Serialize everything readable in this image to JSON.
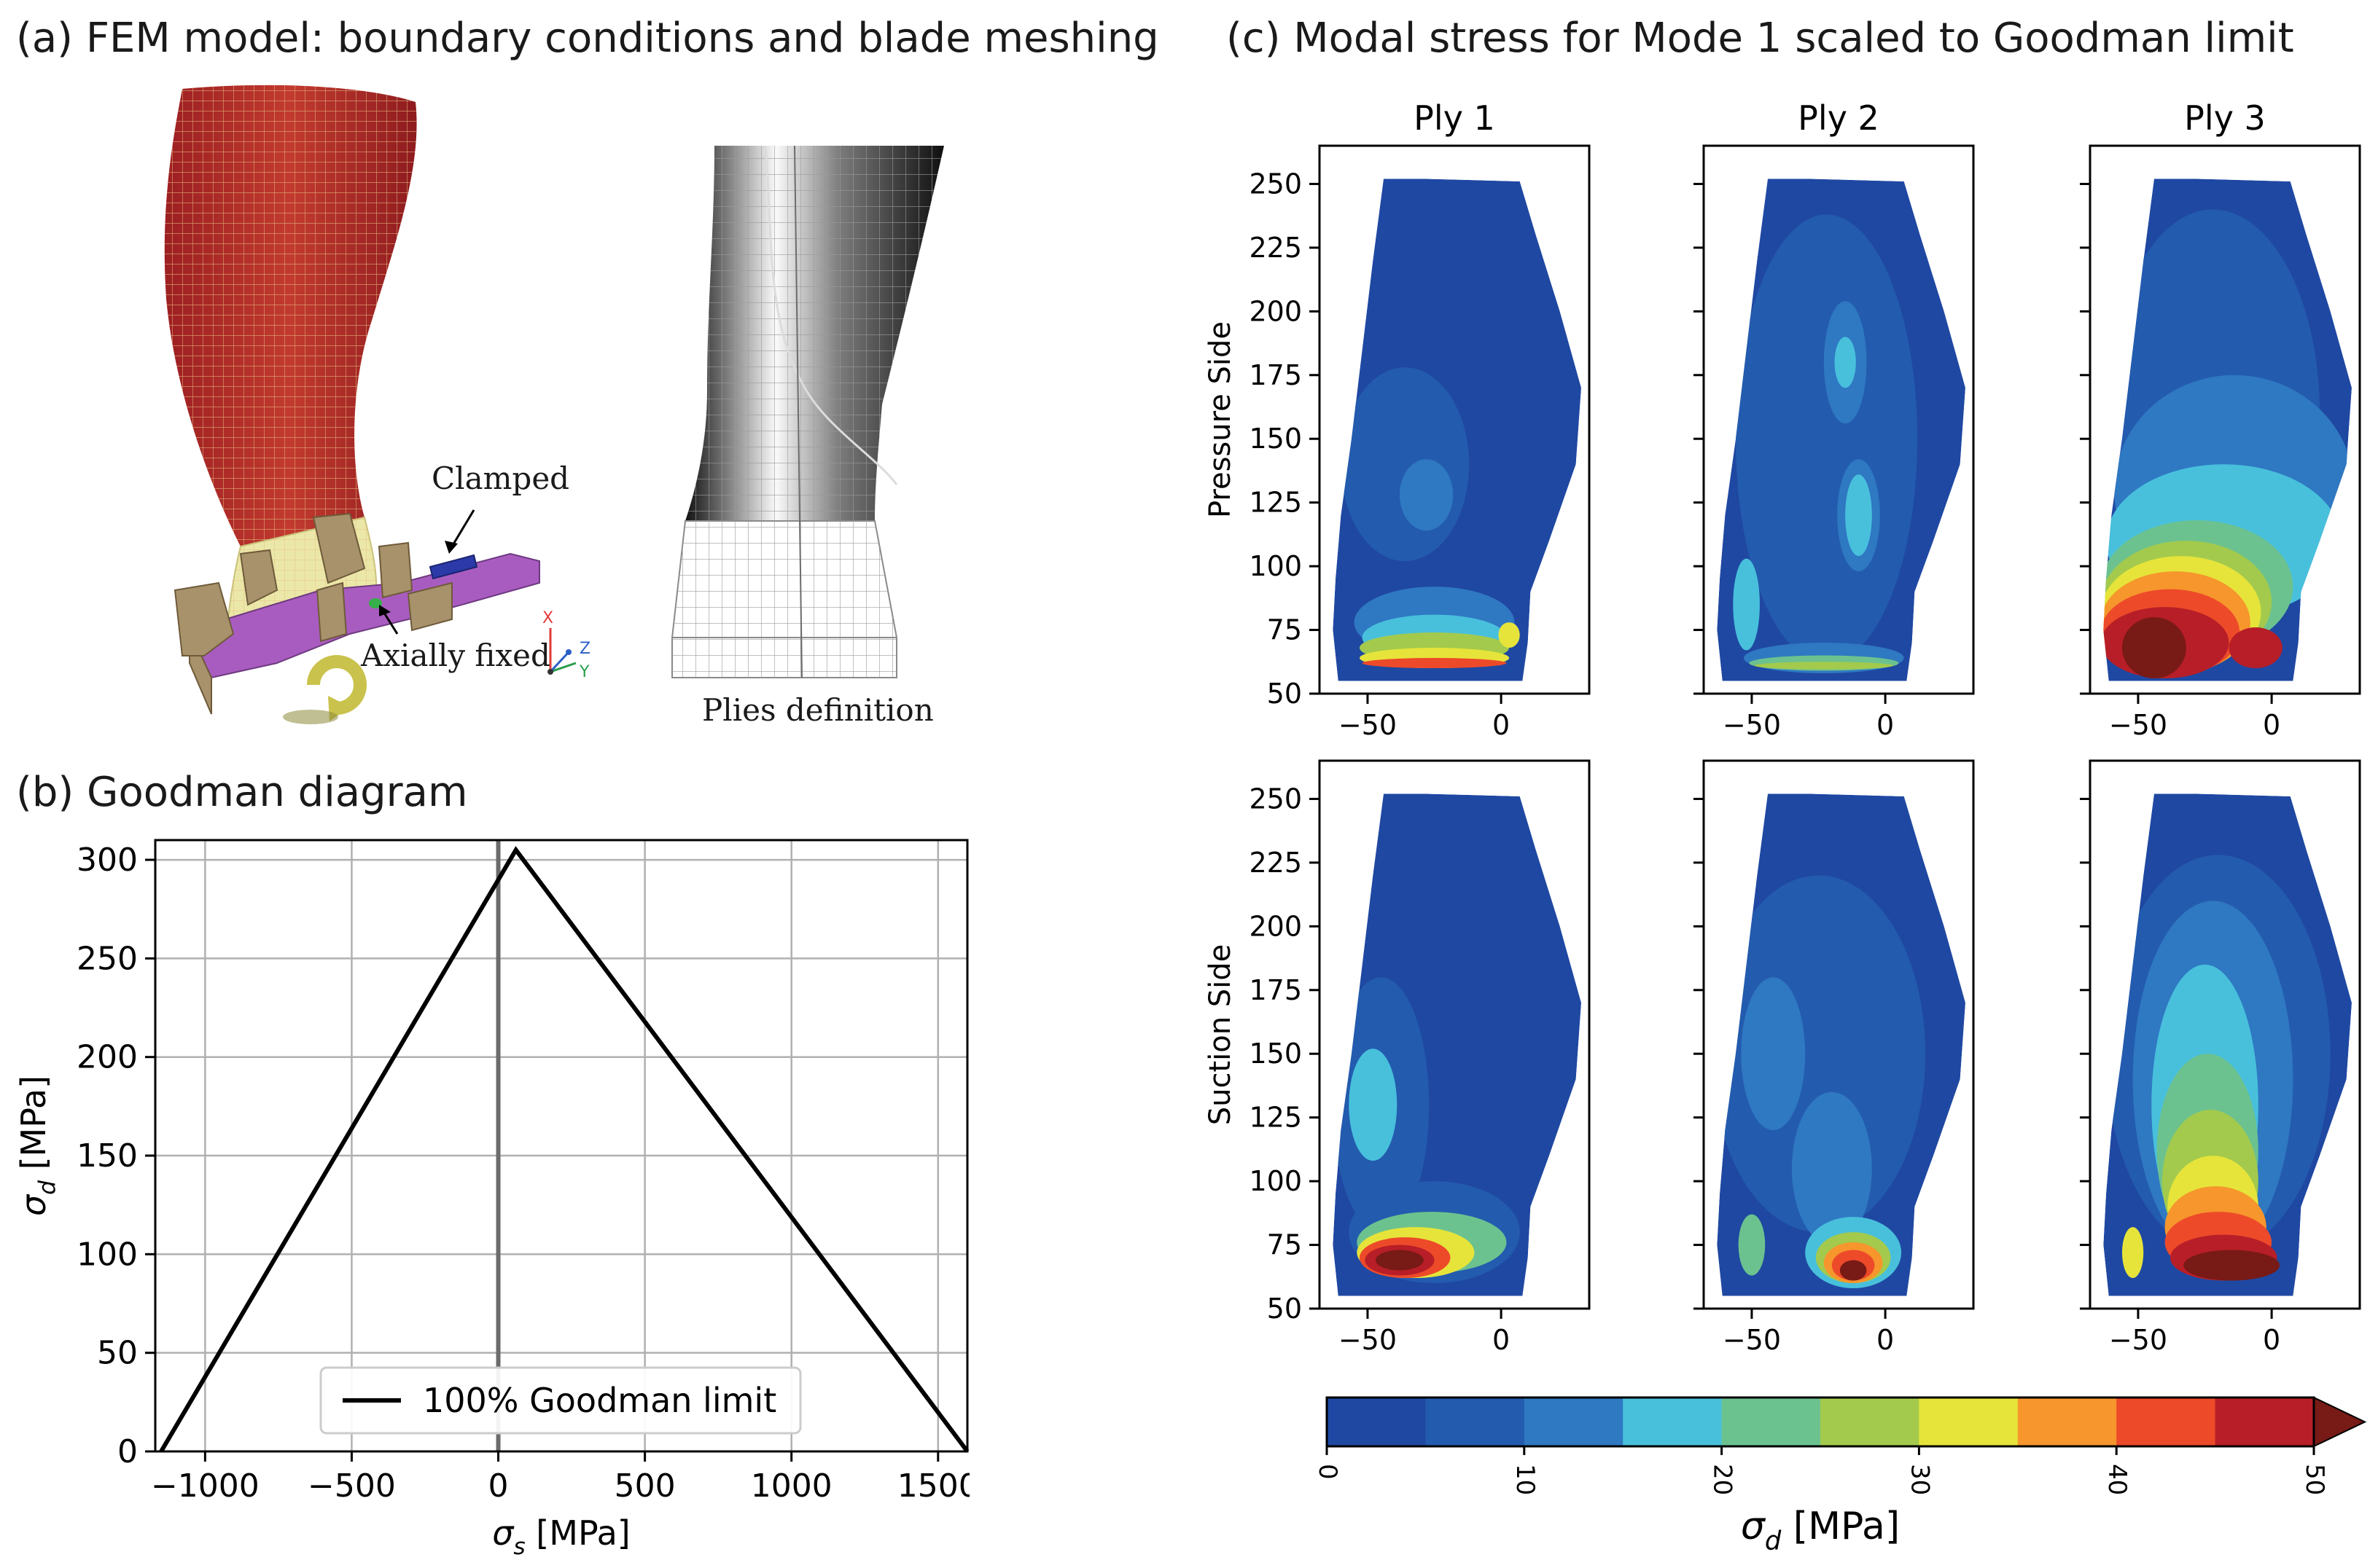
{
  "panel_a": {
    "title": "(a) FEM model: boundary conditions and blade meshing",
    "label_clamped": "Clamped",
    "label_axially_fixed": "Axially fixed",
    "label_plies": "Plies definition",
    "axes_triad": {
      "x": "X",
      "y": "Y",
      "z": "Z"
    },
    "colors": {
      "blade": "#b3262a",
      "root_band": "#ebe7a8",
      "platform": "#a95cc0",
      "disk": "#a8926b",
      "clamp": "#2b3aa8",
      "axial_fix": "#35b04a",
      "arrow": "#c9c24c"
    }
  },
  "panel_b": {
    "title": "(b) Goodman diagram"
  },
  "panel_c": {
    "title": "(c) Modal stress for Mode 1 scaled to Goodman limit"
  },
  "chart_data": [
    {
      "type": "line",
      "title": "(b) Goodman diagram",
      "xlabel": "σs [MPa]",
      "ylabel": "σd [MPa]",
      "xlim": [
        -1170,
        1600
      ],
      "ylim": [
        0,
        310
      ],
      "xticks": [
        -1000,
        -500,
        0,
        500,
        1000,
        1500
      ],
      "xtick_labels": [
        "−1000",
        "−500",
        "0",
        "500",
        "1000",
        "1500"
      ],
      "yticks": [
        0,
        50,
        100,
        150,
        200,
        250,
        300
      ],
      "ytick_labels": [
        "0",
        "50",
        "100",
        "150",
        "200",
        "250",
        "300"
      ],
      "grid": true,
      "vertical_line_x": 0,
      "legend": {
        "placement": "bottom-center",
        "entries": [
          "100% Goodman limit"
        ]
      },
      "series": [
        {
          "name": "100% Goodman limit",
          "x": [
            -1150,
            60,
            1600
          ],
          "y": [
            0,
            305,
            0
          ],
          "color": "#000000"
        }
      ]
    },
    {
      "type": "heatmap",
      "title": "(c) Modal stress for Mode 1 scaled to Goodman limit",
      "columns": [
        "Ply 1",
        "Ply 2",
        "Ply 3"
      ],
      "rows": [
        "Pressure Side",
        "Suction Side"
      ],
      "xlim": [
        -68,
        33
      ],
      "ylim": [
        50,
        265
      ],
      "xticks": [
        -50,
        0
      ],
      "xtick_labels": [
        "−50",
        "0"
      ],
      "yticks": [
        50,
        75,
        100,
        125,
        150,
        175,
        200,
        225,
        250
      ],
      "ytick_labels": [
        "50",
        "75",
        "100",
        "125",
        "150",
        "175",
        "200",
        "225",
        "250"
      ],
      "blade_outline": {
        "left": [
          [
            -44,
            252
          ],
          [
            -48,
            220
          ],
          [
            -52,
            185
          ],
          [
            -56,
            150
          ],
          [
            -60,
            120
          ],
          [
            -62,
            95
          ],
          [
            -63,
            75
          ],
          [
            -61,
            55
          ]
        ],
        "right": [
          [
            -28,
            252
          ],
          [
            7,
            251
          ],
          [
            13,
            230
          ],
          [
            22,
            200
          ],
          [
            30,
            170
          ],
          [
            28,
            140
          ],
          [
            18,
            110
          ],
          [
            11,
            90
          ],
          [
            10,
            70
          ],
          [
            8,
            55
          ]
        ]
      },
      "colorbar": {
        "label": "σd [MPa]",
        "ticks": [
          "0",
          "10",
          "20",
          "30",
          "40",
          "50"
        ],
        "levels": [
          0,
          5,
          10,
          15,
          20,
          25,
          30,
          35,
          40,
          45,
          50
        ],
        "colors": [
          "#1f48a2",
          "#235bae",
          "#2f78c2",
          "#48c0dc",
          "#6cc28f",
          "#a3ca4d",
          "#e6e43a",
          "#f6962c",
          "#ed4a2a",
          "#b81e27"
        ],
        "extend_color": "#781a16"
      },
      "background_level": 0,
      "panels": [
        {
          "row": 0,
          "col": 0,
          "blobs": [
            {
              "cx": -36,
              "cy": 140,
              "rx": 24,
              "ry": 38,
              "level": 1
            },
            {
              "cx": -28,
              "cy": 128,
              "rx": 10,
              "ry": 14,
              "level": 2
            },
            {
              "cx": -25,
              "cy": 78,
              "rx": 30,
              "ry": 14,
              "level": 2
            },
            {
              "cx": -25,
              "cy": 72,
              "rx": 27,
              "ry": 9,
              "level": 3
            },
            {
              "cx": -25,
              "cy": 68,
              "rx": 28,
              "ry": 6,
              "level": 5
            },
            {
              "cx": -25,
              "cy": 64,
              "rx": 28,
              "ry": 4,
              "level": 6
            },
            {
              "cx": -25,
              "cy": 62,
              "rx": 27,
              "ry": 2,
              "level": 8
            },
            {
              "cx": 3,
              "cy": 73,
              "rx": 4,
              "ry": 5,
              "level": 6
            }
          ]
        },
        {
          "row": 0,
          "col": 1,
          "blobs": [
            {
              "cx": -22,
              "cy": 150,
              "rx": 34,
              "ry": 88,
              "level": 1
            },
            {
              "cx": -15,
              "cy": 180,
              "rx": 8,
              "ry": 24,
              "level": 2
            },
            {
              "cx": -15,
              "cy": 180,
              "rx": 4,
              "ry": 10,
              "level": 3
            },
            {
              "cx": -10,
              "cy": 120,
              "rx": 8,
              "ry": 22,
              "level": 2
            },
            {
              "cx": -10,
              "cy": 120,
              "rx": 5,
              "ry": 16,
              "level": 3
            },
            {
              "cx": -52,
              "cy": 85,
              "rx": 5,
              "ry": 18,
              "level": 3
            },
            {
              "cx": -23,
              "cy": 64,
              "rx": 30,
              "ry": 6,
              "level": 2
            },
            {
              "cx": -23,
              "cy": 62,
              "rx": 28,
              "ry": 3,
              "level": 4
            },
            {
              "cx": -23,
              "cy": 61,
              "rx": 26,
              "ry": 1.5,
              "level": 5
            }
          ]
        },
        {
          "row": 0,
          "col": 2,
          "blobs": [
            {
              "cx": -22,
              "cy": 160,
              "rx": 40,
              "ry": 80,
              "level": 1
            },
            {
              "cx": -14,
              "cy": 130,
              "rx": 45,
              "ry": 45,
              "level": 2
            },
            {
              "cx": -18,
              "cy": 110,
              "rx": 44,
              "ry": 30,
              "level": 3
            },
            {
              "cx": -28,
              "cy": 92,
              "rx": 36,
              "ry": 26,
              "level": 4
            },
            {
              "cx": -32,
              "cy": 86,
              "rx": 32,
              "ry": 24,
              "level": 5
            },
            {
              "cx": -34,
              "cy": 82,
              "rx": 30,
              "ry": 22,
              "level": 6
            },
            {
              "cx": -36,
              "cy": 78,
              "rx": 28,
              "ry": 20,
              "level": 7
            },
            {
              "cx": -38,
              "cy": 74,
              "rx": 26,
              "ry": 17,
              "level": 8
            },
            {
              "cx": -40,
              "cy": 70,
              "rx": 24,
              "ry": 14,
              "level": 9
            },
            {
              "cx": -44,
              "cy": 68,
              "rx": 12,
              "ry": 12,
              "level": 10
            },
            {
              "cx": -6,
              "cy": 68,
              "rx": 10,
              "ry": 8,
              "level": 9
            }
          ]
        },
        {
          "row": 1,
          "col": 0,
          "blobs": [
            {
              "cx": -45,
              "cy": 130,
              "rx": 18,
              "ry": 50,
              "level": 1
            },
            {
              "cx": -48,
              "cy": 130,
              "rx": 9,
              "ry": 22,
              "level": 3
            },
            {
              "cx": -25,
              "cy": 80,
              "rx": 32,
              "ry": 20,
              "level": 1
            },
            {
              "cx": -26,
              "cy": 76,
              "rx": 28,
              "ry": 12,
              "level": 4
            },
            {
              "cx": -32,
              "cy": 72,
              "rx": 22,
              "ry": 10,
              "level": 6
            },
            {
              "cx": -36,
              "cy": 70,
              "rx": 17,
              "ry": 8,
              "level": 8
            },
            {
              "cx": -38,
              "cy": 69,
              "rx": 13,
              "ry": 6,
              "level": 9
            },
            {
              "cx": -38,
              "cy": 69,
              "rx": 9,
              "ry": 4,
              "level": 10
            }
          ]
        },
        {
          "row": 1,
          "col": 1,
          "blobs": [
            {
              "cx": -25,
              "cy": 150,
              "rx": 40,
              "ry": 70,
              "level": 1
            },
            {
              "cx": -42,
              "cy": 150,
              "rx": 12,
              "ry": 30,
              "level": 2
            },
            {
              "cx": -20,
              "cy": 105,
              "rx": 15,
              "ry": 30,
              "level": 2
            },
            {
              "cx": -12,
              "cy": 72,
              "rx": 18,
              "ry": 14,
              "level": 3
            },
            {
              "cx": -12,
              "cy": 70,
              "rx": 14,
              "ry": 10,
              "level": 5
            },
            {
              "cx": -12,
              "cy": 68,
              "rx": 11,
              "ry": 8,
              "level": 7
            },
            {
              "cx": -12,
              "cy": 67,
              "rx": 8,
              "ry": 6,
              "level": 8
            },
            {
              "cx": -12,
              "cy": 65,
              "rx": 5,
              "ry": 4,
              "level": 10
            },
            {
              "cx": -50,
              "cy": 75,
              "rx": 5,
              "ry": 12,
              "level": 4
            }
          ]
        },
        {
          "row": 1,
          "col": 2,
          "blobs": [
            {
              "cx": -20,
              "cy": 150,
              "rx": 42,
              "ry": 78,
              "level": 1
            },
            {
              "cx": -22,
              "cy": 140,
              "rx": 30,
              "ry": 70,
              "level": 2
            },
            {
              "cx": -25,
              "cy": 130,
              "rx": 20,
              "ry": 55,
              "level": 3
            },
            {
              "cx": -24,
              "cy": 112,
              "rx": 19,
              "ry": 38,
              "level": 4
            },
            {
              "cx": -23,
              "cy": 100,
              "rx": 18,
              "ry": 28,
              "level": 5
            },
            {
              "cx": -22,
              "cy": 90,
              "rx": 17,
              "ry": 20,
              "level": 6
            },
            {
              "cx": -21,
              "cy": 82,
              "rx": 19,
              "ry": 16,
              "level": 7
            },
            {
              "cx": -20,
              "cy": 76,
              "rx": 20,
              "ry": 12,
              "level": 8
            },
            {
              "cx": -18,
              "cy": 70,
              "rx": 20,
              "ry": 9,
              "level": 9
            },
            {
              "cx": -15,
              "cy": 67,
              "rx": 18,
              "ry": 6,
              "level": 10
            },
            {
              "cx": -52,
              "cy": 72,
              "rx": 4,
              "ry": 10,
              "level": 6
            }
          ]
        }
      ]
    }
  ]
}
